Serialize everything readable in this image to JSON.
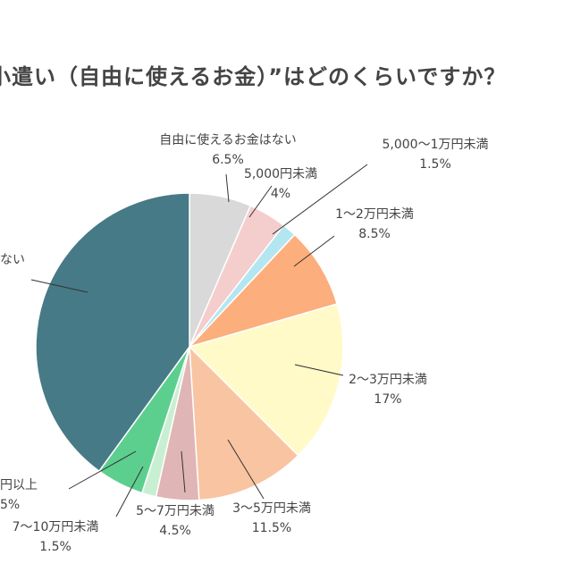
{
  "chart_data": {
    "type": "pie",
    "title": "小遣い（自由に使えるお金）”はどのくらいですか？",
    "start_angle": "12 o'clock",
    "direction": "clockwise",
    "slices": [
      {
        "label": "自由に使えるお金はない",
        "value": 6.5,
        "value_label": "6.5%",
        "color": "#d9d9d9"
      },
      {
        "label": "5,000円未満",
        "value": 4,
        "value_label": "4%",
        "color": "#f4cdcd"
      },
      {
        "label": "5,000〜1万円未満",
        "value": 1.5,
        "value_label": "1.5%",
        "color": "#b3e6f0"
      },
      {
        "label": "1〜2万円未満",
        "value": 8.5,
        "value_label": "8.5%",
        "color": "#fcae7c"
      },
      {
        "label": "2〜3万円未満",
        "value": 17,
        "value_label": "17%",
        "color": "#fffac8"
      },
      {
        "label": "3〜5万円未満",
        "value": 11.5,
        "value_label": "11.5%",
        "color": "#f9c4a2"
      },
      {
        "label": "5〜7万円未満",
        "value": 4.5,
        "value_label": "4.5%",
        "color": "#e0b5b5"
      },
      {
        "label": "7〜10万円未満",
        "value": 1.5,
        "value_label": "1.5%",
        "color": "#c9efd2"
      },
      {
        "label": "円以上",
        "value": 5,
        "value_label": "5%",
        "color": "#5ccf8f"
      },
      {
        "label": "ない",
        "value": 40,
        "value_label": "",
        "color": "#467a86"
      }
    ]
  }
}
